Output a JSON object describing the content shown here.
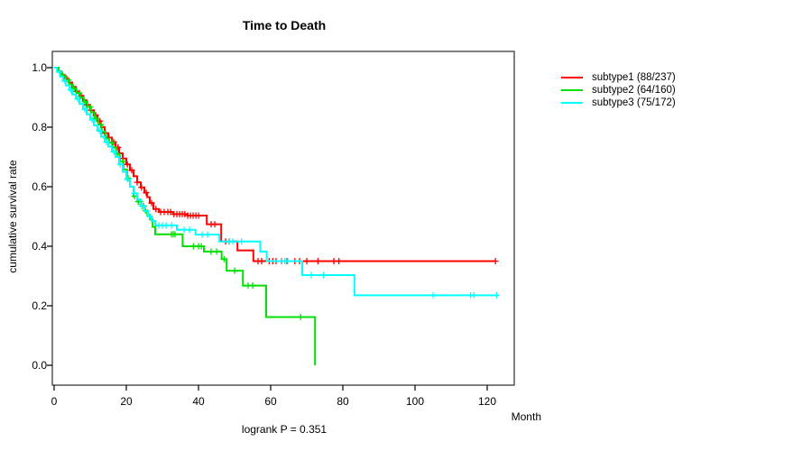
{
  "chart_data": {
    "type": "line",
    "subtype": "kaplan-meier-step",
    "title": "Time to Death",
    "ylabel": "cumulative survival rate",
    "xlabel": "Month",
    "annotation": "logrank P = 0.351",
    "xlim": [
      0,
      127.5
    ],
    "ylim": [
      0,
      1
    ],
    "grid": false,
    "legend_position": "right-outside",
    "x_ticks": [
      {
        "v": 0,
        "label": "0"
      },
      {
        "v": 20,
        "label": "20"
      },
      {
        "v": 40,
        "label": "40"
      },
      {
        "v": 60,
        "label": "60"
      },
      {
        "v": 80,
        "label": "80"
      },
      {
        "v": 100,
        "label": "100"
      },
      {
        "v": 120,
        "label": "120"
      }
    ],
    "y_ticks": [
      {
        "v": 0.0,
        "label": "0.0"
      },
      {
        "v": 0.2,
        "label": "0.2"
      },
      {
        "v": 0.4,
        "label": "0.4"
      },
      {
        "v": 0.6,
        "label": "0.6"
      },
      {
        "v": 0.8,
        "label": "0.8"
      },
      {
        "v": 1.0,
        "label": "1.0"
      }
    ],
    "series": [
      {
        "name": "subtype1",
        "legend": "subtype1 (88/237)",
        "color": "#FF0000",
        "end": 122.3,
        "steps": [
          [
            0,
            1.0
          ],
          [
            1.2,
            0.987
          ],
          [
            2,
            0.975
          ],
          [
            3,
            0.962
          ],
          [
            4,
            0.95
          ],
          [
            5,
            0.935
          ],
          [
            6,
            0.92
          ],
          [
            7,
            0.905
          ],
          [
            8,
            0.89
          ],
          [
            9,
            0.875
          ],
          [
            10,
            0.857
          ],
          [
            11,
            0.84
          ],
          [
            12,
            0.82
          ],
          [
            13,
            0.8
          ],
          [
            14,
            0.78
          ],
          [
            15,
            0.765
          ],
          [
            16,
            0.75
          ],
          [
            17,
            0.732
          ],
          [
            18,
            0.712
          ],
          [
            19,
            0.695
          ],
          [
            20,
            0.675
          ],
          [
            21,
            0.655
          ],
          [
            22,
            0.635
          ],
          [
            23,
            0.615
          ],
          [
            24,
            0.598
          ],
          [
            25,
            0.58
          ],
          [
            25.8,
            0.565
          ],
          [
            26.5,
            0.545
          ],
          [
            27.5,
            0.525
          ],
          [
            29,
            0.515
          ],
          [
            33,
            0.508
          ],
          [
            37,
            0.503
          ],
          [
            42.3,
            0.474
          ],
          [
            46.3,
            0.416
          ],
          [
            50.8,
            0.386
          ],
          [
            55.2,
            0.35
          ]
        ],
        "censors": [
          2.3,
          3.5,
          5,
          6.2,
          7.5,
          9,
          10.2,
          11.5,
          12.7,
          14,
          15.2,
          16.5,
          17.7,
          19,
          20.3,
          21.5,
          23,
          24.2,
          25.5,
          27,
          28.2,
          29.5,
          30.5,
          31.5,
          32.3,
          33.2,
          34,
          34.8,
          35.5,
          36.2,
          37,
          37.8,
          38.5,
          39.3,
          40,
          43.5,
          44.5,
          47.5,
          48.5,
          56.5,
          57.5,
          59.6,
          60.6,
          61.5,
          63,
          64.5,
          66.7,
          68,
          70,
          73.1,
          77.5,
          78.9,
          122.3
        ]
      },
      {
        "name": "subtype2",
        "legend": "subtype2 (64/160)",
        "color": "#00E000",
        "end": 72.3,
        "steps": [
          [
            0,
            1.0
          ],
          [
            1.3,
            0.986
          ],
          [
            2.2,
            0.972
          ],
          [
            3.2,
            0.958
          ],
          [
            4.2,
            0.944
          ],
          [
            5.2,
            0.93
          ],
          [
            6.2,
            0.915
          ],
          [
            7.2,
            0.9
          ],
          [
            8.2,
            0.885
          ],
          [
            9.2,
            0.868
          ],
          [
            10.2,
            0.85
          ],
          [
            11.2,
            0.83
          ],
          [
            12.2,
            0.808
          ],
          [
            13.2,
            0.785
          ],
          [
            14.2,
            0.762
          ],
          [
            15.2,
            0.748
          ],
          [
            16.2,
            0.732
          ],
          [
            17.2,
            0.71
          ],
          [
            18.2,
            0.685
          ],
          [
            19.2,
            0.658
          ],
          [
            20.2,
            0.628
          ],
          [
            21,
            0.6
          ],
          [
            22,
            0.568
          ],
          [
            23,
            0.55
          ],
          [
            24,
            0.535
          ],
          [
            25,
            0.52
          ],
          [
            25.8,
            0.505
          ],
          [
            26.5,
            0.49
          ],
          [
            27.3,
            0.465
          ],
          [
            28,
            0.44
          ],
          [
            35.6,
            0.4
          ],
          [
            41.5,
            0.382
          ],
          [
            46.4,
            0.357
          ],
          [
            47.8,
            0.318
          ],
          [
            52.3,
            0.268
          ],
          [
            58.75,
            0.162
          ],
          [
            72.3,
            0.0
          ]
        ],
        "censors": [
          2.5,
          4,
          5.5,
          7,
          8.5,
          10,
          11.5,
          13,
          14.5,
          16,
          17.5,
          19,
          20.5,
          22.3,
          23.3,
          23.8,
          24.3,
          24.8,
          25.3,
          32.5,
          33,
          33.5,
          38.6,
          40,
          40.8,
          43.5,
          45,
          47.1,
          50,
          53.75,
          55,
          68.3
        ]
      },
      {
        "name": "subtype3",
        "legend": "subtype3 (75/172)",
        "color": "#00FFFF",
        "end": 122.6,
        "steps": [
          [
            0,
            1.0
          ],
          [
            0.8,
            0.985
          ],
          [
            1.6,
            0.97
          ],
          [
            2.4,
            0.955
          ],
          [
            3.3,
            0.94
          ],
          [
            4.2,
            0.925
          ],
          [
            5,
            0.91
          ],
          [
            6,
            0.895
          ],
          [
            7,
            0.878
          ],
          [
            8,
            0.86
          ],
          [
            9,
            0.843
          ],
          [
            10,
            0.825
          ],
          [
            11,
            0.806
          ],
          [
            12,
            0.788
          ],
          [
            13,
            0.768
          ],
          [
            14,
            0.75
          ],
          [
            15,
            0.735
          ],
          [
            16,
            0.718
          ],
          [
            17,
            0.7
          ],
          [
            18,
            0.675
          ],
          [
            19,
            0.65
          ],
          [
            20,
            0.625
          ],
          [
            21,
            0.6
          ],
          [
            22,
            0.578
          ],
          [
            23,
            0.556
          ],
          [
            24,
            0.535
          ],
          [
            25,
            0.518
          ],
          [
            26,
            0.5
          ],
          [
            27,
            0.485
          ],
          [
            28,
            0.47
          ],
          [
            34,
            0.455
          ],
          [
            39.2,
            0.439
          ],
          [
            45.8,
            0.416
          ],
          [
            57.1,
            0.382
          ],
          [
            58.9,
            0.35
          ],
          [
            68.75,
            0.303
          ],
          [
            83.2,
            0.235
          ]
        ],
        "censors": [
          1.5,
          3,
          4.6,
          6.5,
          8.5,
          10.5,
          12.5,
          14.5,
          16.5,
          18.3,
          20.3,
          22.3,
          24.3,
          26.5,
          29,
          30,
          31,
          32.5,
          36,
          37.5,
          41,
          42.5,
          48.5,
          49.5,
          51.9,
          62.9,
          63.9,
          64.75,
          71.25,
          74.6,
          105,
          115.4,
          116.3,
          122.6
        ]
      }
    ]
  }
}
